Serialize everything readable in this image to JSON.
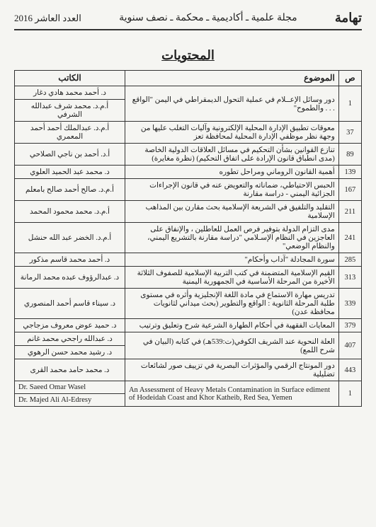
{
  "header": {
    "journal_name": "تهامة",
    "journal_desc": "مجلة علمية ـ أكاديمية ـ محكمة ـ نصف سنوية",
    "issue_info": "العدد العاشر 2016"
  },
  "contents_title": "المحتويات",
  "table": {
    "headers": {
      "page": "ص",
      "topic": "الموضوع",
      "author": "الكاتب"
    },
    "rows": [
      {
        "page": "1",
        "topic": "دور وسائل الإعــلام في عملية التحول الديمقراطي في اليمن \"الواقع . . . والطموح\"",
        "authors": [
          "د. أحمد محمد هادي دغار",
          "أ.م.د. محمد شرف عبدالله الشرفي"
        ]
      },
      {
        "page": "37",
        "topic": "معوقات تطبيق الإدارة المحلية الإلكترونية وآليات التغلب عليها من وجهة نظر موظفي الإدارة المحلية لمحافظة تعز",
        "authors": [
          "أ.م.د. عبدالملك أحمد أحمد المعمري"
        ]
      },
      {
        "page": "89",
        "topic": "تنازع القوانين بشأن التحكيم في مسائل العلاقات الدولية الخاصة (مدى انطباق قانون الإرادة على اتفاق التحكيم) (نظرة مغايرة)",
        "authors": [
          "أ.د. أحمد بن ناجي الصلاحي"
        ]
      },
      {
        "page": "139",
        "topic": "أهمية القانون الروماني ومراحل تطوره",
        "authors": [
          "د. محمد عبد الحميد العلوي"
        ]
      },
      {
        "page": "167",
        "topic": "الحبس الاحتياطي، ضماناته والتعويض عنه في قانون الإجراءات الجزائية اليمني - دراسة مقارنة",
        "authors": [
          "أ.م.د. صالح أحمد صالح بامعلم"
        ]
      },
      {
        "page": "211",
        "topic": "التقليد والتلفيق في الشريعة الإسلامية بحث مقارن بين المذاهب الإسلامية",
        "authors": [
          "أ.م.د. محمد محمود المحمد"
        ]
      },
      {
        "page": "241",
        "topic": "مدى التزام الدولة بتوفير فرص العمل للعاطلين ، والإنفاق على العاجزين في النظام الإسـلامي \"دراسة مقارنة بالتشريع اليمني، والنظام الوضعي\"",
        "authors": [
          "أ.م.د. الخضر عبد الله حنشل"
        ]
      },
      {
        "page": "285",
        "topic": "سورة المجادلة \"آداب وأحكام\"",
        "authors": [
          "د. أحمد محمد قاسم مذكور"
        ]
      },
      {
        "page": "313",
        "topic": "القيم الإسلامية المتضمنة في كتب التربية الإسلامية للصفوف الثلاثة الأخيرة من المرحلة الأساسية في الجمهورية اليمنية",
        "authors": [
          "د. عبدالرؤوف عبده محمد الرمانة"
        ]
      },
      {
        "page": "339",
        "topic": "تدريس مهارة الاستماع في مادة اللغة الإنجليزية وأثره في مستوى طلبة المرحلة الثانوية : الواقع والتطوير (بحث ميداني لثانويات محافظة عدن)",
        "authors": [
          "د. سيناء قاسم أحمد المنصوري"
        ]
      },
      {
        "page": "379",
        "topic": "المعايات الفقهية في أحكام الطهارة الشرعية شرح وتعليق وترتيب",
        "authors": [
          "د. حميد عوض معروف مزجاجي"
        ]
      },
      {
        "page": "407",
        "topic": "العلة النحوية عند الشريف الكوفي(ت:539هـ) في كتابه (البيان في شرح اللمع)",
        "authors": [
          "د. عبدالله راجحي محمد غانم",
          "د. رشيد محمد حسن الرهوي"
        ]
      },
      {
        "page": "443",
        "topic": "دور المونتاج الرقمي والمؤثرات البصرية في تزييف صور لشائعات تضليلية",
        "authors": [
          "د. محمد حامد محمد القرى"
        ]
      },
      {
        "page": "1",
        "topic": "An Assessment of Heavy Metals Contamination in Surface ediment of Hodeidah Coast and Khor Katheib, Red Sea, Yemen",
        "authors": [
          "Dr. Saeed Omar Wasel",
          "Dr. Majed Ali Al-Edresy"
        ],
        "ltr": true
      }
    ]
  }
}
